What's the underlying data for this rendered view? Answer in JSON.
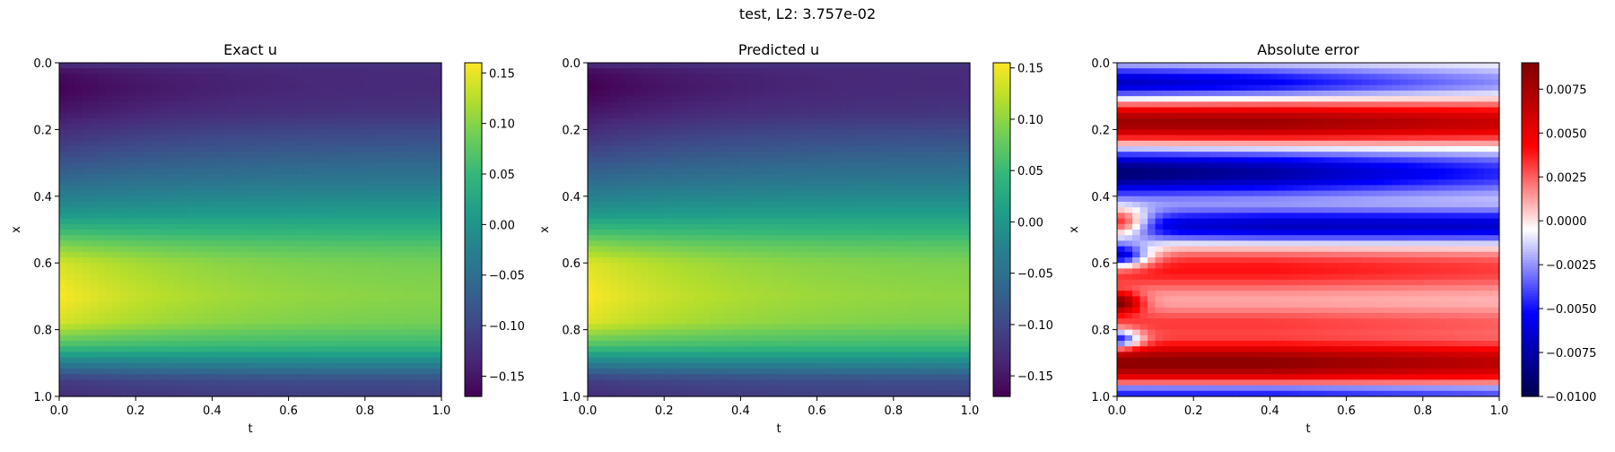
{
  "figure": {
    "suptitle": "test, L2: 3.757e-02"
  },
  "chart_data": [
    {
      "type": "heatmap",
      "title": "Exact u",
      "xlabel": "t",
      "ylabel": "x",
      "xlim": [
        0.0,
        1.0
      ],
      "ylim": [
        1.0,
        0.0
      ],
      "xticks": [
        "0.0",
        "0.2",
        "0.4",
        "0.6",
        "0.8",
        "1.0"
      ],
      "yticks": [
        "0.0",
        "0.2",
        "0.4",
        "0.6",
        "0.8",
        "1.0"
      ],
      "colormap": "viridis",
      "clim": [
        -0.17,
        0.16
      ],
      "colorbar_ticks": [
        "0.15",
        "0.10",
        "0.05",
        "0.00",
        "−0.05",
        "−0.10",
        "−0.15"
      ],
      "profile_x": [
        0.0,
        0.03,
        0.08,
        0.15,
        0.25,
        0.35,
        0.45,
        0.5,
        0.55,
        0.6,
        0.7,
        0.78,
        0.85,
        0.9,
        0.95,
        1.0
      ],
      "profile_u_t0": [
        -0.12,
        -0.16,
        -0.17,
        -0.15,
        -0.11,
        -0.06,
        0.0,
        0.05,
        0.1,
        0.14,
        0.16,
        0.14,
        0.06,
        -0.03,
        -0.11,
        -0.13
      ],
      "profile_u_t1": [
        -0.12,
        -0.13,
        -0.13,
        -0.12,
        -0.08,
        -0.04,
        0.01,
        0.04,
        0.07,
        0.09,
        0.1,
        0.09,
        0.05,
        -0.02,
        -0.09,
        -0.11
      ]
    },
    {
      "type": "heatmap",
      "title": "Predicted u",
      "xlabel": "t",
      "ylabel": "x",
      "xlim": [
        0.0,
        1.0
      ],
      "ylim": [
        1.0,
        0.0
      ],
      "xticks": [
        "0.0",
        "0.2",
        "0.4",
        "0.6",
        "0.8",
        "1.0"
      ],
      "yticks": [
        "0.0",
        "0.2",
        "0.4",
        "0.6",
        "0.8",
        "1.0"
      ],
      "colormap": "viridis",
      "clim": [
        -0.17,
        0.155
      ],
      "colorbar_ticks": [
        "0.15",
        "0.10",
        "0.05",
        "0.00",
        "−0.05",
        "−0.10",
        "−0.15"
      ],
      "profile_x": [
        0.0,
        0.03,
        0.08,
        0.15,
        0.25,
        0.35,
        0.45,
        0.5,
        0.55,
        0.6,
        0.7,
        0.78,
        0.85,
        0.9,
        0.95,
        1.0
      ],
      "profile_u_t0": [
        -0.125,
        -0.165,
        -0.172,
        -0.15,
        -0.11,
        -0.06,
        0.0,
        0.05,
        0.1,
        0.14,
        0.155,
        0.14,
        0.06,
        -0.03,
        -0.11,
        -0.13
      ],
      "profile_u_t1": [
        -0.12,
        -0.13,
        -0.13,
        -0.12,
        -0.08,
        -0.04,
        0.01,
        0.04,
        0.07,
        0.09,
        0.1,
        0.09,
        0.05,
        -0.02,
        -0.09,
        -0.11
      ]
    },
    {
      "type": "heatmap",
      "title": "Absolute error",
      "xlabel": "t",
      "ylabel": "x",
      "xlim": [
        0.0,
        1.0
      ],
      "ylim": [
        1.0,
        0.0
      ],
      "xticks": [
        "0.0",
        "0.2",
        "0.4",
        "0.6",
        "0.8",
        "1.0"
      ],
      "yticks": [
        "0.0",
        "0.2",
        "0.4",
        "0.6",
        "0.8",
        "1.0"
      ],
      "colormap": "seismic",
      "clim": [
        -0.01,
        0.009
      ],
      "colorbar_ticks": [
        "0.0075",
        "0.0050",
        "0.0025",
        "0.0000",
        "−0.0025",
        "−0.0050",
        "−0.0075",
        "−0.0100"
      ],
      "bands": [
        {
          "x_center": 0.06,
          "half_width": 0.05,
          "value": -0.007,
          "decay": 0.5
        },
        {
          "x_center": 0.18,
          "half_width": 0.06,
          "value": 0.008,
          "decay": 0.0
        },
        {
          "x_center": 0.33,
          "half_width": 0.07,
          "value": -0.009,
          "decay": 0.35
        },
        {
          "x_center": 0.49,
          "half_width": 0.05,
          "value": -0.006,
          "decay": -0.4
        },
        {
          "x_center": 0.62,
          "half_width": 0.07,
          "value": 0.004,
          "decay": 0.0
        },
        {
          "x_center": 0.78,
          "half_width": 0.05,
          "value": 0.003,
          "decay": 0.0
        },
        {
          "x_center": 0.9,
          "half_width": 0.06,
          "value": 0.0085,
          "decay": 0.0
        },
        {
          "x_center": 0.985,
          "half_width": 0.02,
          "value": -0.006,
          "decay": 0.0
        }
      ],
      "early_spots": [
        {
          "x_center": 0.58,
          "half_width": 0.035,
          "value": -0.009,
          "t_width": 0.08
        },
        {
          "x_center": 0.83,
          "half_width": 0.03,
          "value": -0.008,
          "t_width": 0.06
        },
        {
          "x_center": 0.48,
          "half_width": 0.04,
          "value": 0.009,
          "t_width": 0.08
        },
        {
          "x_center": 0.72,
          "half_width": 0.03,
          "value": 0.008,
          "t_width": 0.06
        }
      ]
    }
  ]
}
